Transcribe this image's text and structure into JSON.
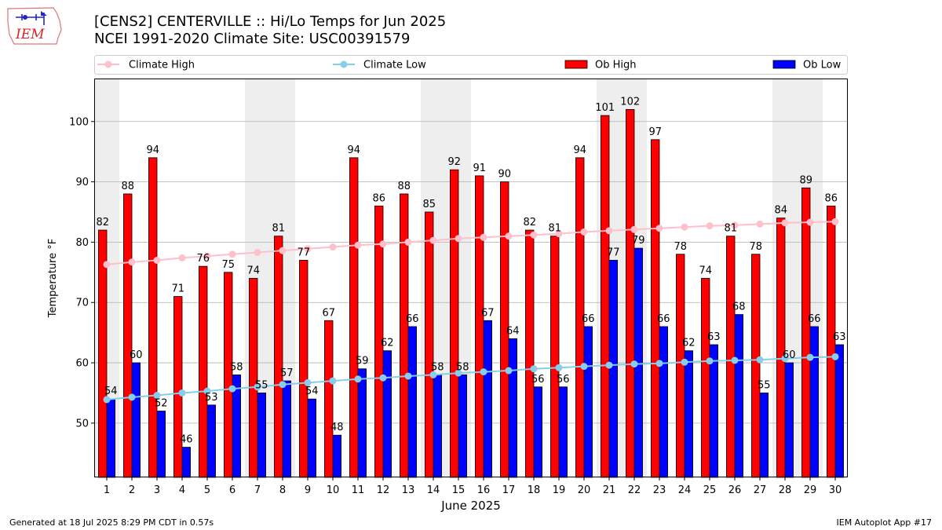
{
  "header": {
    "logo_text": "IEM",
    "title_line1": "[CENS2] CENTERVILLE :: Hi/Lo Temps for Jun 2025",
    "title_line2": "NCEI 1991-2020 Climate Site: USC00391579"
  },
  "footer": {
    "generated": "Generated at 18 Jul 2025 8:29 PM CDT in 0.57s",
    "app": "IEM Autoplot App #17"
  },
  "colors": {
    "ob_high": "#ff0000",
    "ob_low": "#0000ff",
    "climate_high": "#ffc0cb",
    "climate_low": "#87ceeb",
    "weekend_shade": "#eeeeee",
    "grid": "#b0b0b0"
  },
  "chart_data": {
    "type": "bar",
    "xlabel": "June 2025",
    "ylabel": "Temperature °F",
    "ylim": [
      41,
      107
    ],
    "yticks": [
      50,
      60,
      70,
      80,
      90,
      100
    ],
    "grid": "horizontal",
    "legend_position": "top",
    "categories": [
      "1",
      "2",
      "3",
      "4",
      "5",
      "6",
      "7",
      "8",
      "9",
      "10",
      "11",
      "12",
      "13",
      "14",
      "15",
      "16",
      "17",
      "18",
      "19",
      "20",
      "21",
      "22",
      "23",
      "24",
      "25",
      "26",
      "27",
      "28",
      "29",
      "30"
    ],
    "shaded_days": [
      1,
      7,
      8,
      14,
      15,
      21,
      22,
      28,
      29
    ],
    "series": [
      {
        "name": "Climate High",
        "kind": "line",
        "values": [
          76.3,
          76.7,
          77.0,
          77.4,
          77.7,
          78.0,
          78.3,
          78.6,
          78.9,
          79.2,
          79.5,
          79.7,
          80.0,
          80.3,
          80.6,
          80.8,
          81.0,
          81.2,
          81.4,
          81.7,
          81.9,
          82.1,
          82.3,
          82.5,
          82.7,
          82.8,
          83.0,
          83.2,
          83.3,
          83.4
        ]
      },
      {
        "name": "Climate Low",
        "kind": "line",
        "values": [
          53.9,
          54.3,
          54.6,
          55.0,
          55.3,
          55.7,
          56.0,
          56.4,
          56.7,
          57.0,
          57.3,
          57.5,
          57.8,
          58.0,
          58.3,
          58.5,
          58.7,
          59.0,
          59.2,
          59.4,
          59.6,
          59.8,
          59.9,
          60.1,
          60.3,
          60.4,
          60.5,
          60.7,
          60.9,
          61.0
        ]
      },
      {
        "name": "Ob High",
        "kind": "bar",
        "values": [
          82,
          88,
          94,
          71,
          76,
          75,
          74,
          81,
          77,
          67,
          94,
          86,
          88,
          85,
          92,
          91,
          90,
          82,
          81,
          94,
          101,
          102,
          97,
          78,
          74,
          81,
          78,
          84,
          89,
          86
        ]
      },
      {
        "name": "Ob Low",
        "kind": "bar",
        "values": [
          54,
          60,
          52,
          46,
          53,
          58,
          55,
          57,
          54,
          48,
          59,
          62,
          66,
          58,
          58,
          67,
          64,
          56,
          56,
          66,
          77,
          79,
          66,
          62,
          63,
          68,
          55,
          60,
          66,
          63
        ]
      }
    ]
  }
}
